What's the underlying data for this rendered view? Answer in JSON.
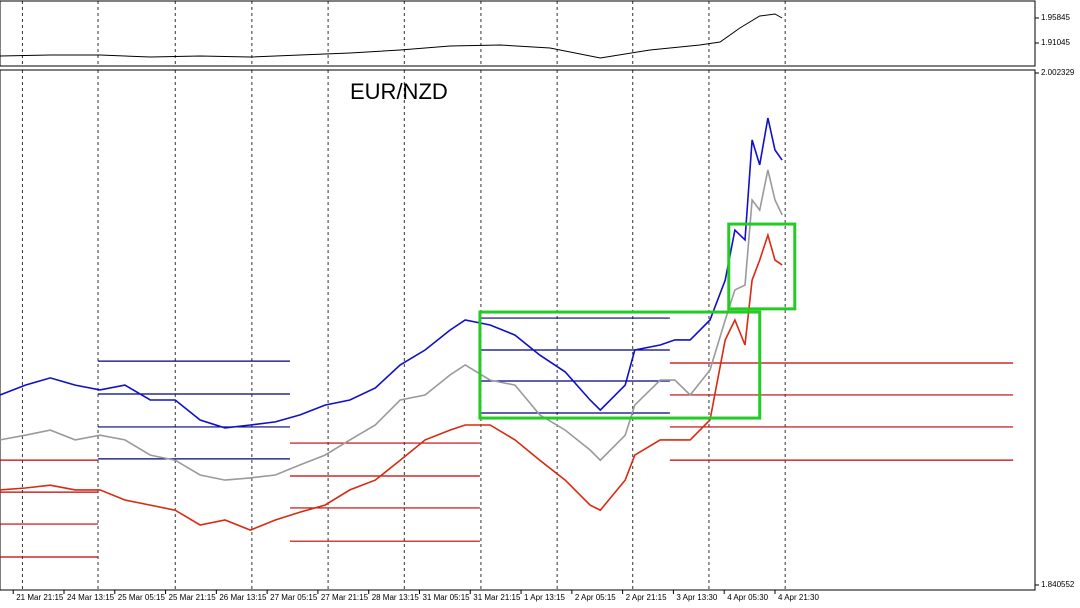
{
  "chart_data": [
    {
      "type": "line",
      "xlim": [
        -0.26,
        20.12
      ],
      "ylim": [
        1.86245,
        1.99301
      ],
      "yticks": [
        1.91045,
        1.95845
      ],
      "x": [
        -0.26,
        0.73,
        1.71,
        2.7,
        3.68,
        4.67,
        5.65,
        6.63,
        7.62,
        8.6,
        9.59,
        10.57,
        11.56,
        12.54,
        13.52,
        13.92,
        14.31,
        14.7,
        15.0,
        15.14
      ],
      "series": [
        {
          "color": "#000000",
          "values": [
            1.8855,
            1.8874,
            1.8874,
            1.8836,
            1.8855,
            1.8836,
            1.8874,
            1.8913,
            1.897,
            1.9047,
            1.9066,
            1.9009,
            1.8816,
            1.897,
            1.9066,
            1.9124,
            1.9393,
            1.9623,
            1.9661,
            1.9585
          ]
        }
      ]
    },
    {
      "type": "line",
      "title": "EUR/NZD",
      "xlim": [
        -0.26,
        20.12
      ],
      "ylim": [
        1.840552,
        2.002329
      ],
      "yticks": [
        1.840552,
        2.002329
      ],
      "xticks": [
        {
          "value": 0,
          "label": "21 Mar 21:15"
        },
        {
          "value": 1,
          "label": "24 Mar 13:15"
        },
        {
          "value": 2,
          "label": "25 Mar 05:15"
        },
        {
          "value": 3,
          "label": "25 Mar 21:15"
        },
        {
          "value": 4,
          "label": "26 Mar 13:15"
        },
        {
          "value": 5,
          "label": "27 Mar 05:15"
        },
        {
          "value": 6,
          "label": "27 Mar 21:15"
        },
        {
          "value": 7,
          "label": "28 Mar 13:15"
        },
        {
          "value": 8,
          "label": "31 Mar 05:15"
        },
        {
          "value": 9,
          "label": "31 Mar 21:15"
        },
        {
          "value": 10,
          "label": "1 Apr 13:15"
        },
        {
          "value": 11,
          "label": "2 Apr 05:15"
        },
        {
          "value": 12,
          "label": "2 Apr 21:15"
        },
        {
          "value": 13,
          "label": "3 Apr 13:30"
        },
        {
          "value": 14,
          "label": "4 Apr 05:30"
        },
        {
          "value": 15,
          "label": "4 Apr 21:30"
        }
      ],
      "separators": [
        0.18,
        1.67,
        3.19,
        4.7,
        6.2,
        7.7,
        9.21,
        10.71,
        12.2,
        13.7,
        15.2
      ],
      "x": [
        -0.26,
        0.24,
        0.73,
        1.22,
        1.71,
        2.2,
        2.7,
        3.19,
        3.68,
        4.17,
        4.67,
        5.16,
        5.65,
        6.14,
        6.63,
        7.13,
        7.62,
        8.11,
        8.6,
        8.9,
        9.39,
        9.88,
        10.37,
        10.87,
        11.36,
        11.56,
        12.05,
        12.24,
        12.74,
        13.03,
        13.33,
        13.72,
        14.02,
        14.21,
        14.41,
        14.55,
        14.7,
        14.86,
        15.0,
        15.14
      ],
      "series": [
        {
          "color": "#1010c8",
          "values": [
            1.9006,
            1.9037,
            1.906,
            1.9037,
            1.9022,
            1.9037,
            1.899,
            1.899,
            1.8927,
            1.8902,
            1.8911,
            1.8921,
            1.8943,
            1.8974,
            1.899,
            1.9028,
            1.9101,
            1.9148,
            1.9211,
            1.9243,
            1.9227,
            1.9195,
            1.9132,
            1.9079,
            1.899,
            1.8958,
            1.9037,
            1.9148,
            1.9164,
            1.918,
            1.918,
            1.9243,
            1.9369,
            1.9527,
            1.9496,
            1.9812,
            1.9733,
            1.9881,
            1.978,
            1.9748
          ]
        },
        {
          "color": "#9a9a9a",
          "values": [
            1.8864,
            1.8879,
            1.8895,
            1.8864,
            1.8879,
            1.8864,
            1.8816,
            1.88,
            1.8753,
            1.8737,
            1.8744,
            1.8753,
            1.8785,
            1.8816,
            1.8864,
            1.8911,
            1.899,
            1.9006,
            1.9069,
            1.9101,
            1.9053,
            1.9037,
            1.8943,
            1.8895,
            1.8832,
            1.88,
            1.8879,
            1.8974,
            1.9053,
            1.9053,
            1.9006,
            1.9085,
            1.9243,
            1.9338,
            1.9353,
            1.9622,
            1.959,
            1.9717,
            1.9622,
            1.9575
          ]
        },
        {
          "color": "#d82a10",
          "values": [
            1.8706,
            1.8712,
            1.8721,
            1.8706,
            1.8706,
            1.8674,
            1.8658,
            1.8642,
            1.8595,
            1.8611,
            1.8579,
            1.8611,
            1.8636,
            1.8658,
            1.8706,
            1.8737,
            1.88,
            1.8864,
            1.8895,
            1.8911,
            1.8911,
            1.8864,
            1.88,
            1.8737,
            1.8658,
            1.8642,
            1.8737,
            1.8816,
            1.8864,
            1.8864,
            1.8864,
            1.8927,
            1.918,
            1.9243,
            1.9164,
            1.9369,
            1.9432,
            1.9511,
            1.9432,
            1.9417
          ]
        }
      ],
      "levels": [
        {
          "color": "#c00000",
          "from": -0.26,
          "to": 1.67,
          "values": [
            1.88,
            1.8699,
            1.8598,
            1.8494
          ]
        },
        {
          "color": "#000080",
          "from": 1.67,
          "to": 5.45,
          "values": [
            1.9113,
            1.9009,
            1.8905,
            1.8804
          ]
        },
        {
          "color": "#c00000",
          "from": 5.45,
          "to": 9.19,
          "values": [
            1.8854,
            1.875,
            1.8649,
            1.8544
          ]
        },
        {
          "color": "#000080",
          "from": 9.19,
          "to": 12.93,
          "values": [
            1.9249,
            1.9148,
            1.905,
            1.8949
          ]
        },
        {
          "color": "#c00000",
          "from": 12.93,
          "to": 19.69,
          "values": [
            1.9107,
            1.9006,
            1.8905,
            1.88
          ]
        }
      ],
      "boxes": [
        {
          "color": "#22cc22",
          "x": [
            9.19,
            14.7
          ],
          "y": [
            1.8933,
            1.9268
          ]
        },
        {
          "color": "#22cc22",
          "x": [
            14.09,
            15.39
          ],
          "y": [
            1.9278,
            1.9546
          ]
        }
      ]
    }
  ]
}
